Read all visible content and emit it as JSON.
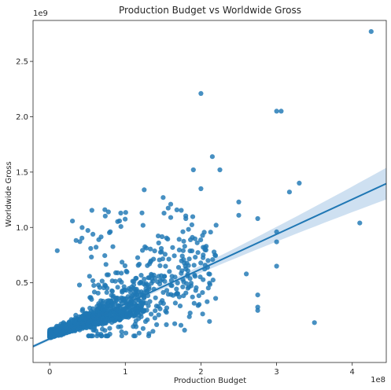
{
  "chart_data": {
    "type": "scatter",
    "title": "Production Budget vs Worldwide Gross",
    "xlabel": "Production Budget",
    "ylabel": "Worldwide Gross",
    "x_offset_label": "1e8",
    "y_offset_label": "1e9",
    "x_ticks": [
      0,
      1,
      2,
      3,
      4
    ],
    "x_tick_labels": [
      "0",
      "1",
      "2",
      "3",
      "4"
    ],
    "y_ticks": [
      0.0,
      0.5,
      1.0,
      1.5,
      2.0,
      2.5
    ],
    "y_tick_labels": [
      "0.0",
      "0.5",
      "1.0",
      "1.5",
      "2.0",
      "2.5"
    ],
    "xlim": [
      -0.22,
      4.45
    ],
    "ylim": [
      -0.22,
      2.87
    ],
    "grid": false,
    "colors": {
      "points": "#1f77b4",
      "line": "#1f77b4",
      "band": "#c6dbef"
    },
    "regression": {
      "intercept": -0.006,
      "slope": 0.315
    },
    "notable_points": [
      [
        4.25,
        2.77
      ],
      [
        2.0,
        2.21
      ],
      [
        3.0,
        2.05
      ],
      [
        3.06,
        2.05
      ],
      [
        2.15,
        1.64
      ],
      [
        1.9,
        1.52
      ],
      [
        2.25,
        1.52
      ],
      [
        3.3,
        1.4
      ],
      [
        3.17,
        1.32
      ],
      [
        1.25,
        1.34
      ],
      [
        4.1,
        1.04
      ],
      [
        3.5,
        0.14
      ],
      [
        2.0,
        1.35
      ],
      [
        2.5,
        1.23
      ],
      [
        2.75,
        1.08
      ],
      [
        3.0,
        0.96
      ],
      [
        3.0,
        0.87
      ],
      [
        3.0,
        0.65
      ],
      [
        2.6,
        0.58
      ],
      [
        2.75,
        0.39
      ],
      [
        2.75,
        0.28
      ],
      [
        2.75,
        0.25
      ],
      [
        0.1,
        0.79
      ],
      [
        0.73,
        1.16
      ],
      [
        0.94,
        1.13
      ],
      [
        1.6,
        1.09
      ],
      [
        1.8,
        1.08
      ],
      [
        2.5,
        1.11
      ],
      [
        2.2,
        1.02
      ],
      [
        1.5,
        1.27
      ],
      [
        1.6,
        1.21
      ]
    ]
  }
}
